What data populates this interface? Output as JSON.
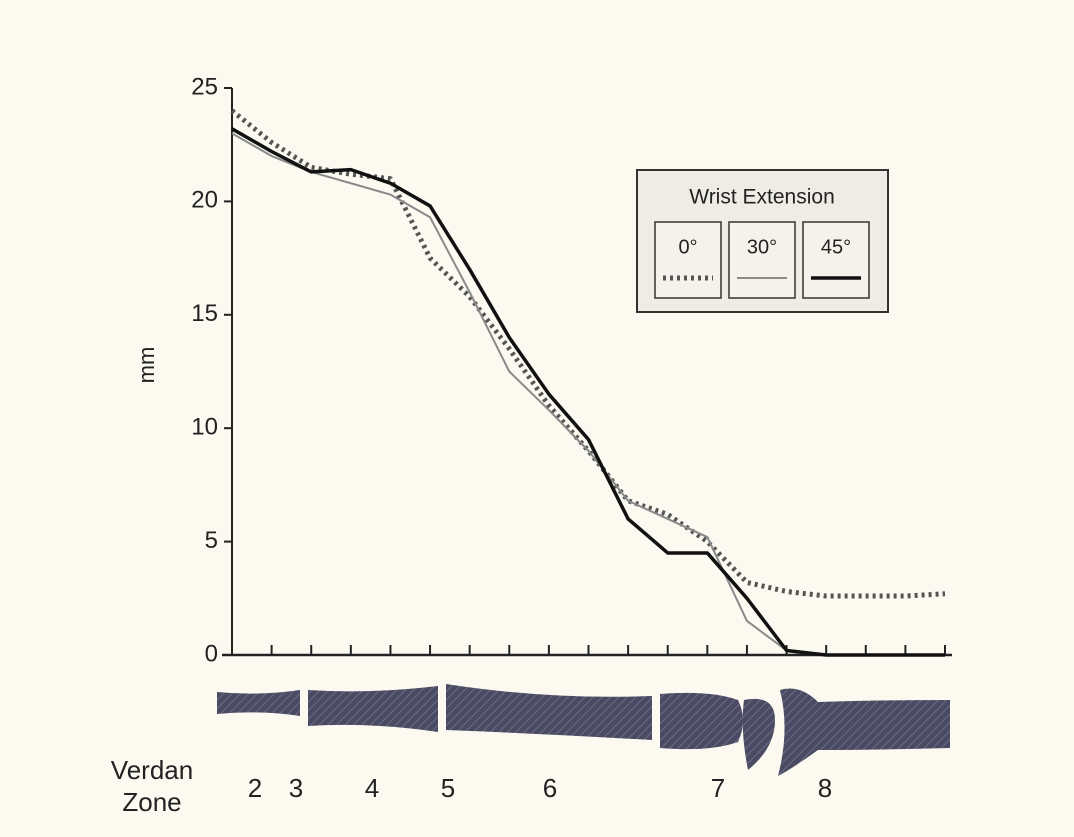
{
  "chart_data": {
    "type": "line",
    "y_label": "mm",
    "categories": [
      null,
      null,
      null,
      null,
      null,
      null,
      null,
      null,
      null,
      null,
      null,
      null,
      null,
      null,
      null,
      null,
      null,
      null,
      null
    ],
    "series": [
      {
        "name": "0°",
        "color": "#555555",
        "style": "dotted",
        "values": [
          24.0,
          22.6,
          21.5,
          21.2,
          21.0,
          17.5,
          15.8,
          13.5,
          11.0,
          9.0,
          6.8,
          6.2,
          5.0,
          3.2,
          2.8,
          2.6,
          2.6,
          2.6,
          2.7
        ]
      },
      {
        "name": "30°",
        "color": "#8a8a8a",
        "style": "solid",
        "values": [
          23.0,
          22.0,
          21.3,
          20.8,
          20.3,
          19.3,
          16.0,
          12.5,
          10.8,
          9.0,
          6.8,
          6.0,
          5.2,
          1.5,
          0.2,
          0.0,
          0.0,
          0.0,
          0.0
        ]
      },
      {
        "name": "45°",
        "color": "#111111",
        "style": "thick",
        "values": [
          23.2,
          22.2,
          21.3,
          21.4,
          20.8,
          19.8,
          17.0,
          14.0,
          11.5,
          9.5,
          6.0,
          4.5,
          4.5,
          2.5,
          0.2,
          0.0,
          0.0,
          0.0,
          0.0
        ]
      }
    ],
    "legend_title": "Wrist Extension",
    "ylim": [
      0,
      25
    ],
    "yticks": [
      0,
      5,
      10,
      15,
      20,
      25
    ],
    "x_label_lines": [
      "Verdan",
      "Zone"
    ],
    "zones": [
      "2",
      "3",
      "4",
      "5",
      "6",
      "7",
      "8"
    ]
  }
}
